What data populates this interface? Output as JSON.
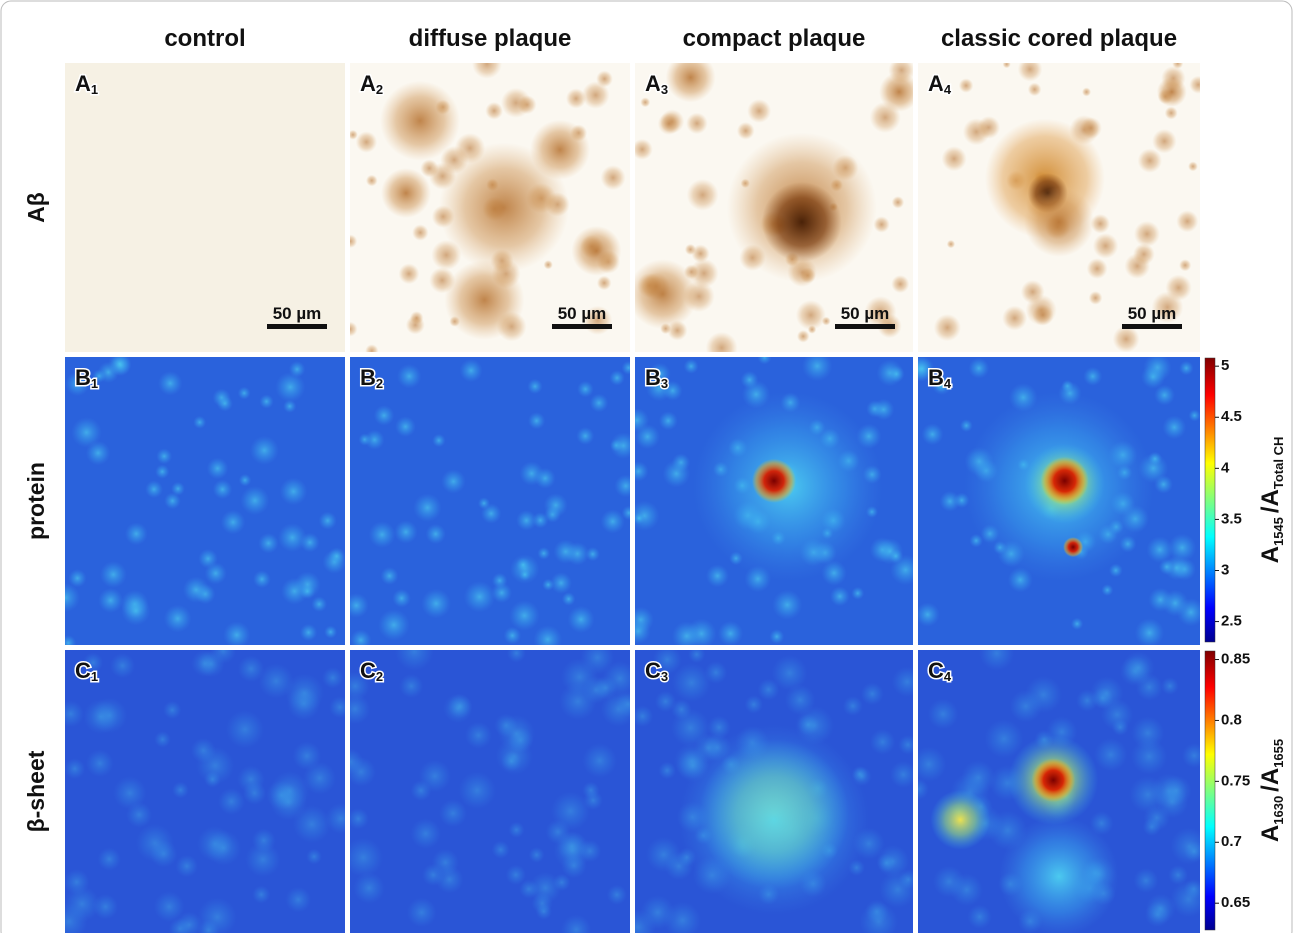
{
  "columns": [
    "control",
    "diffuse plaque",
    "compact plaque",
    "classic cored plaque"
  ],
  "rows": [
    "Aβ",
    "protein",
    "β-sheet"
  ],
  "panels": [
    [
      {
        "letter": "A",
        "sub": "1"
      },
      {
        "letter": "A",
        "sub": "2"
      },
      {
        "letter": "A",
        "sub": "3"
      },
      {
        "letter": "A",
        "sub": "4"
      }
    ],
    [
      {
        "letter": "B",
        "sub": "1"
      },
      {
        "letter": "B",
        "sub": "2"
      },
      {
        "letter": "B",
        "sub": "3"
      },
      {
        "letter": "B",
        "sub": "4"
      }
    ],
    [
      {
        "letter": "C",
        "sub": "1"
      },
      {
        "letter": "C",
        "sub": "2"
      },
      {
        "letter": "C",
        "sub": "3"
      },
      {
        "letter": "C",
        "sub": "4"
      }
    ]
  ],
  "scale_bar": "50 µm",
  "colorbars": [
    {
      "lim": [
        2.3,
        5.08
      ],
      "ticks": [
        2.5,
        3,
        3.5,
        4,
        4.5,
        5
      ],
      "label": {
        "main": "A",
        "sub1": "1545",
        "sep": "/A",
        "sub2": "Total CH"
      }
    },
    {
      "lim": [
        0.628,
        0.857
      ],
      "ticks": [
        0.65,
        0.7,
        0.75,
        0.8,
        0.85
      ],
      "label": {
        "main": "A",
        "sub1": "1630",
        "sep": "/A",
        "sub2": "1655"
      }
    }
  ]
}
